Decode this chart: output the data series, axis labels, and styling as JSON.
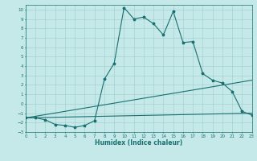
{
  "xlabel": "Humidex (Indice chaleur)",
  "ylabel": "",
  "bg_color": "#c5e8e8",
  "line_color": "#1a7070",
  "grid_color": "#a0cccc",
  "line1_x": [
    0,
    1,
    2,
    3,
    4,
    5,
    6,
    7,
    8,
    9,
    10,
    11,
    12,
    13,
    14,
    15,
    16,
    17,
    18,
    19,
    20,
    21,
    22,
    23
  ],
  "line1_y": [
    -1.5,
    -1.5,
    -1.7,
    -2.2,
    -2.3,
    -2.5,
    -2.3,
    -1.8,
    2.6,
    4.3,
    10.2,
    9.0,
    9.2,
    8.5,
    7.3,
    9.8,
    6.5,
    6.6,
    3.2,
    2.5,
    2.2,
    1.3,
    -0.8,
    -1.2
  ],
  "line2_x": [
    0,
    23
  ],
  "line2_y": [
    -1.5,
    2.5
  ],
  "line3_x": [
    0,
    23
  ],
  "line3_y": [
    -1.5,
    -1.0
  ],
  "xlim": [
    0,
    23
  ],
  "ylim": [
    -3,
    10.5
  ],
  "xticks": [
    0,
    1,
    2,
    3,
    4,
    5,
    6,
    7,
    8,
    9,
    10,
    11,
    12,
    13,
    14,
    15,
    16,
    17,
    18,
    19,
    20,
    21,
    22,
    23
  ],
  "yticks": [
    -3,
    -2,
    -1,
    0,
    1,
    2,
    3,
    4,
    5,
    6,
    7,
    8,
    9,
    10
  ]
}
